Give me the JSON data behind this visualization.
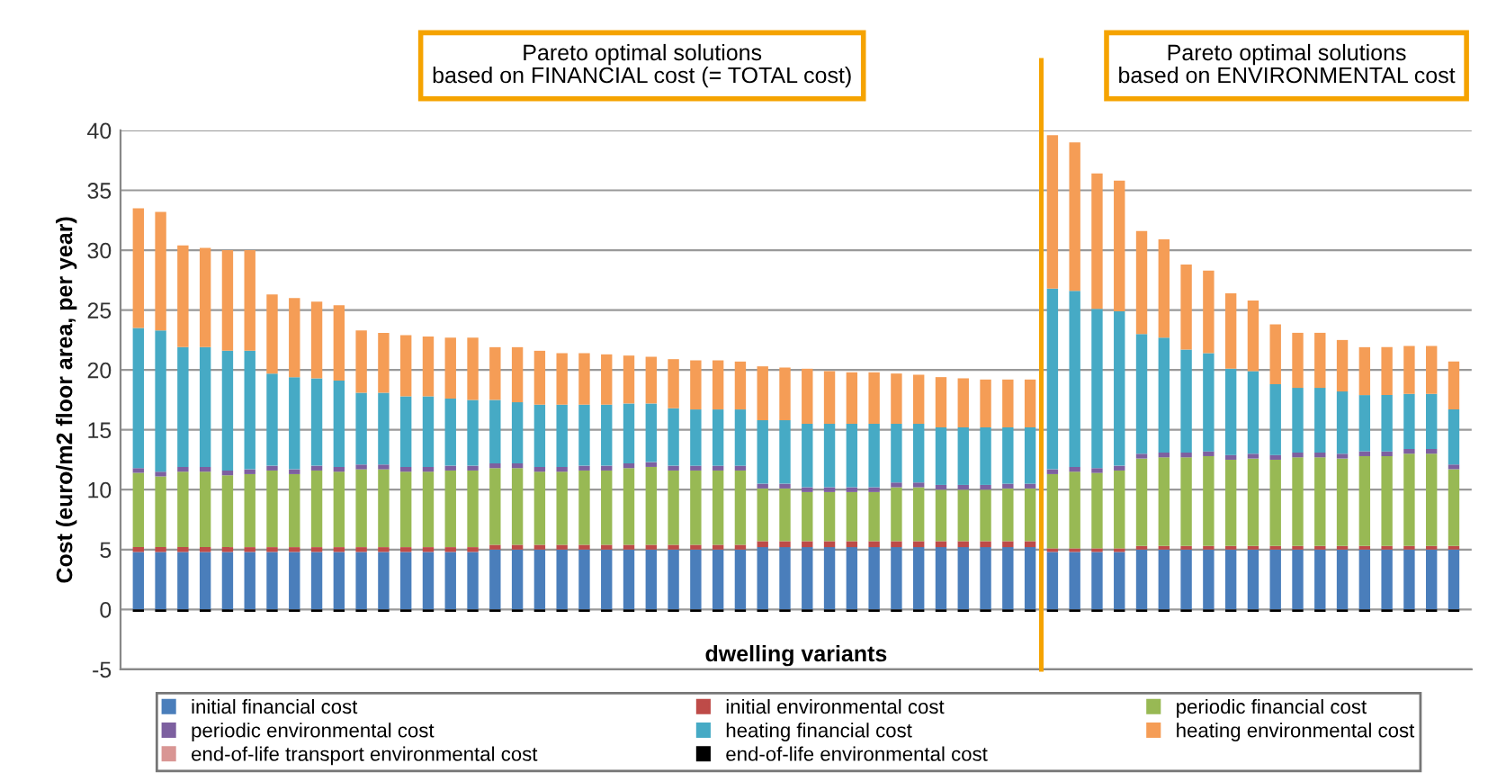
{
  "chart_data": {
    "type": "bar",
    "stacked": true,
    "ylabel": "Cost (euro/m2 floor area, per year)",
    "xlabel": "dwelling variants",
    "annotations": [
      "Pareto optimal solutions\nbased on FINANCIAL cost (= TOTAL cost)",
      "Pareto optimal solutions\nbased on ENVIRONMENTAL cost"
    ],
    "categories": [
      null,
      null,
      null,
      null,
      null,
      null,
      null,
      null,
      null,
      null,
      null,
      null,
      null,
      null,
      null,
      null,
      null,
      null,
      null,
      null,
      null,
      null,
      null,
      null,
      null,
      null,
      null,
      null,
      null,
      null,
      null,
      null,
      null,
      null,
      null,
      null,
      null,
      null,
      null,
      null,
      null,
      null,
      null,
      null,
      null,
      null,
      null,
      null,
      null,
      null,
      null,
      null,
      null,
      null,
      null,
      null,
      null,
      null,
      null,
      null
    ],
    "series": [
      {
        "name": "initial financial cost",
        "color": "#4a7ebb",
        "values": [
          4.8,
          4.8,
          4.8,
          4.8,
          4.8,
          4.8,
          4.8,
          4.8,
          4.8,
          4.8,
          4.8,
          4.8,
          4.8,
          4.8,
          4.8,
          4.8,
          5.0,
          5.0,
          5.0,
          5.0,
          5.0,
          5.0,
          5.0,
          5.0,
          5.0,
          5.0,
          5.0,
          5.0,
          5.2,
          5.2,
          5.2,
          5.2,
          5.2,
          5.2,
          5.2,
          5.2,
          5.2,
          5.2,
          5.2,
          5.2,
          5.2,
          4.8,
          4.8,
          4.8,
          4.8,
          5.0,
          5.0,
          5.0,
          5.0,
          5.0,
          5.0,
          5.0,
          5.0,
          5.0,
          5.0,
          5.0,
          5.0,
          5.0,
          5.0,
          5.0
        ]
      },
      {
        "name": "initial environmental cost",
        "color": "#be4b48",
        "values": [
          0.4,
          0.4,
          0.4,
          0.4,
          0.4,
          0.4,
          0.4,
          0.4,
          0.4,
          0.4,
          0.4,
          0.4,
          0.4,
          0.4,
          0.4,
          0.4,
          0.4,
          0.4,
          0.4,
          0.4,
          0.4,
          0.4,
          0.4,
          0.4,
          0.4,
          0.4,
          0.4,
          0.4,
          0.5,
          0.5,
          0.5,
          0.5,
          0.5,
          0.5,
          0.5,
          0.5,
          0.5,
          0.5,
          0.5,
          0.5,
          0.5,
          0.3,
          0.3,
          0.3,
          0.3,
          0.3,
          0.3,
          0.3,
          0.3,
          0.3,
          0.3,
          0.3,
          0.3,
          0.3,
          0.3,
          0.3,
          0.3,
          0.3,
          0.3,
          0.3
        ]
      },
      {
        "name": "periodic financial cost",
        "color": "#98b954",
        "values": [
          6.2,
          5.9,
          6.3,
          6.3,
          6.0,
          6.1,
          6.4,
          6.1,
          6.4,
          6.3,
          6.5,
          6.5,
          6.3,
          6.3,
          6.4,
          6.4,
          6.4,
          6.4,
          6.1,
          6.1,
          6.2,
          6.2,
          6.4,
          6.5,
          6.2,
          6.2,
          6.2,
          6.2,
          4.4,
          4.4,
          4.1,
          4.1,
          4.1,
          4.1,
          4.5,
          4.5,
          4.3,
          4.3,
          4.3,
          4.4,
          4.4,
          6.2,
          6.4,
          6.3,
          6.5,
          7.3,
          7.4,
          7.4,
          7.5,
          7.2,
          7.3,
          7.2,
          7.4,
          7.4,
          7.3,
          7.5,
          7.5,
          7.7,
          7.7,
          6.4
        ]
      },
      {
        "name": "periodic environmental cost",
        "color": "#7d60a0",
        "values": [
          0.4,
          0.4,
          0.4,
          0.4,
          0.4,
          0.4,
          0.4,
          0.4,
          0.4,
          0.4,
          0.4,
          0.4,
          0.4,
          0.4,
          0.4,
          0.4,
          0.4,
          0.4,
          0.4,
          0.4,
          0.4,
          0.4,
          0.4,
          0.4,
          0.4,
          0.4,
          0.4,
          0.4,
          0.4,
          0.4,
          0.4,
          0.4,
          0.4,
          0.4,
          0.4,
          0.4,
          0.4,
          0.4,
          0.4,
          0.4,
          0.4,
          0.4,
          0.4,
          0.4,
          0.4,
          0.4,
          0.4,
          0.4,
          0.4,
          0.4,
          0.4,
          0.4,
          0.4,
          0.4,
          0.4,
          0.4,
          0.4,
          0.4,
          0.4,
          0.4
        ]
      },
      {
        "name": "heating financial cost",
        "color": "#46aac5",
        "values": [
          11.7,
          11.8,
          10.0,
          10.0,
          10.0,
          9.9,
          7.7,
          7.7,
          7.3,
          7.2,
          6.0,
          6.0,
          5.9,
          5.9,
          5.6,
          5.5,
          5.3,
          5.1,
          5.2,
          5.2,
          5.1,
          5.1,
          5.0,
          4.9,
          4.8,
          4.7,
          4.7,
          4.7,
          5.3,
          5.3,
          5.3,
          5.3,
          5.3,
          5.3,
          4.9,
          4.9,
          4.8,
          4.8,
          4.8,
          4.7,
          4.7,
          15.1,
          14.7,
          13.3,
          12.9,
          10.0,
          9.6,
          8.6,
          8.2,
          7.2,
          6.9,
          5.9,
          5.4,
          5.4,
          5.2,
          4.7,
          4.7,
          4.6,
          4.6,
          4.6
        ]
      },
      {
        "name": "heating environmental cost",
        "color": "#f59d56",
        "values": [
          10.0,
          9.9,
          8.5,
          8.3,
          8.4,
          8.4,
          6.6,
          6.6,
          6.4,
          6.3,
          5.2,
          5.0,
          5.1,
          5.0,
          5.1,
          5.2,
          4.4,
          4.6,
          4.5,
          4.3,
          4.3,
          4.2,
          4.0,
          3.9,
          4.1,
          4.1,
          4.1,
          4.0,
          4.5,
          4.4,
          4.6,
          4.4,
          4.3,
          4.3,
          4.2,
          4.1,
          4.2,
          4.1,
          4.0,
          4.0,
          4.0,
          12.8,
          12.4,
          11.3,
          10.9,
          8.6,
          8.2,
          7.1,
          6.9,
          6.3,
          5.9,
          5.0,
          4.6,
          4.6,
          4.3,
          4.0,
          4.0,
          4.0,
          4.0,
          4.0
        ]
      },
      {
        "name": "end-of-life transport environmental cost",
        "color": "#d99694",
        "values": [
          0,
          0,
          0,
          0,
          0,
          0,
          0,
          0,
          0,
          0,
          0,
          0,
          0,
          0,
          0,
          0,
          0,
          0,
          0,
          0,
          0,
          0,
          0,
          0,
          0,
          0,
          0,
          0,
          0,
          0,
          0,
          0,
          0,
          0,
          0,
          0,
          0,
          0,
          0,
          0,
          0,
          0,
          0,
          0,
          0,
          0,
          0,
          0,
          0,
          0,
          0,
          0,
          0,
          0,
          0,
          0,
          0,
          0,
          0,
          0
        ]
      },
      {
        "name": "end-of-life environmental cost",
        "color": "#000000",
        "values": [
          -0.2,
          -0.2,
          -0.2,
          -0.2,
          -0.2,
          -0.2,
          -0.2,
          -0.2,
          -0.2,
          -0.2,
          -0.2,
          -0.2,
          -0.2,
          -0.2,
          -0.2,
          -0.2,
          -0.2,
          -0.2,
          -0.2,
          -0.2,
          -0.2,
          -0.2,
          -0.2,
          -0.2,
          -0.2,
          -0.2,
          -0.2,
          -0.2,
          -0.2,
          -0.2,
          -0.2,
          -0.2,
          -0.2,
          -0.2,
          -0.2,
          -0.2,
          -0.2,
          -0.2,
          -0.2,
          -0.2,
          -0.2,
          -0.2,
          -0.2,
          -0.2,
          -0.2,
          -0.2,
          -0.2,
          -0.2,
          -0.2,
          -0.2,
          -0.2,
          -0.2,
          -0.2,
          -0.2,
          -0.2,
          -0.2,
          -0.2,
          -0.2,
          -0.2,
          -0.2
        ]
      }
    ],
    "ylim": [
      -5,
      40
    ],
    "yticks": [
      -5,
      0,
      5,
      10,
      15,
      20,
      25,
      30,
      35,
      40
    ],
    "grid": "y",
    "legend": "bottom"
  }
}
